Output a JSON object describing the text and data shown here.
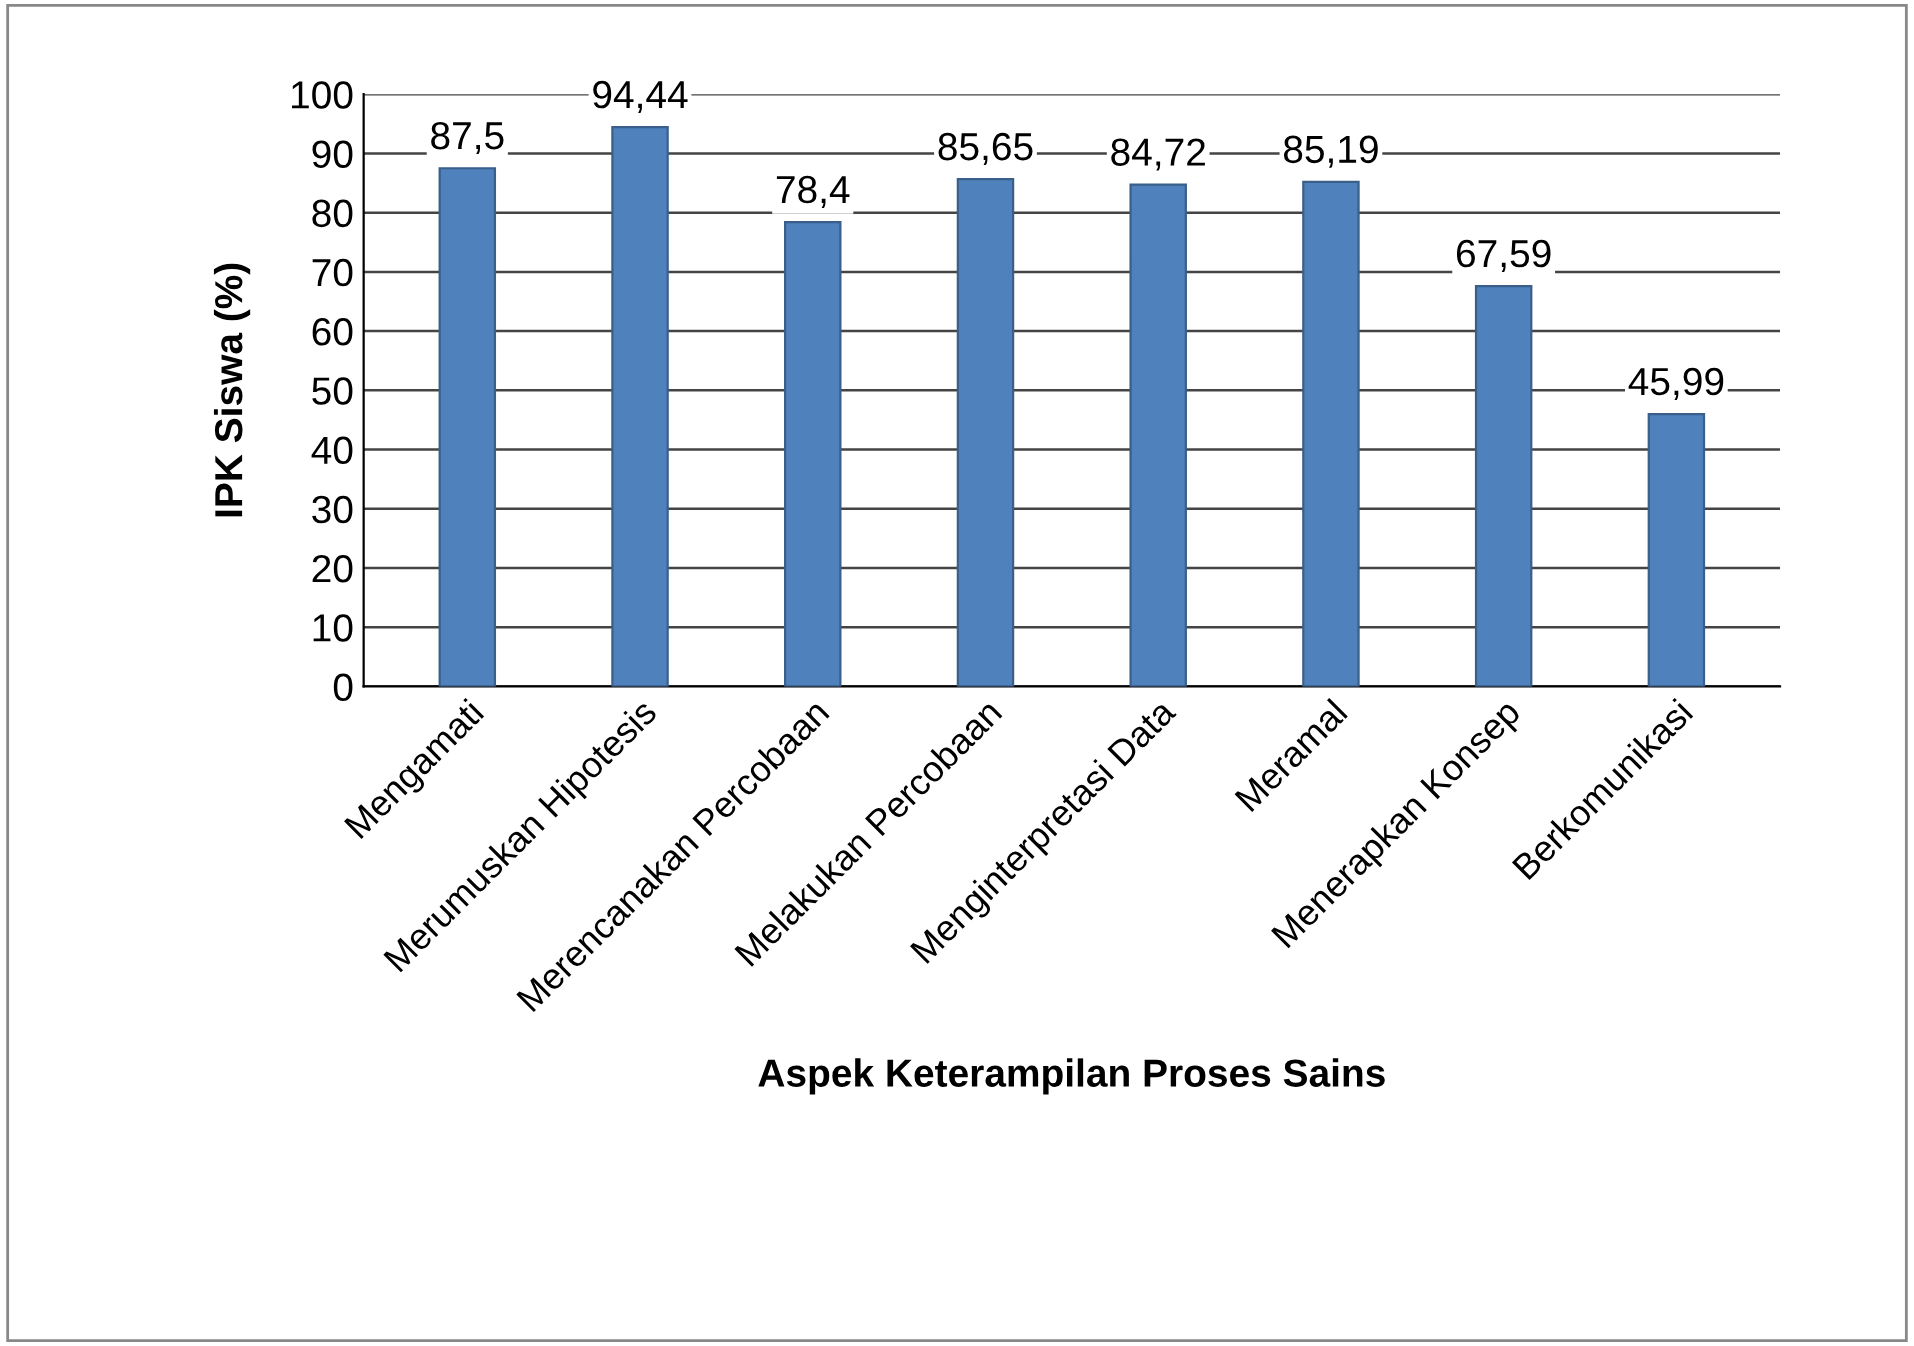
{
  "chart_data": {
    "type": "bar",
    "xlabel": "Aspek Keterampilan Proses Sains",
    "ylabel": "IPK Siswa (%)",
    "categories": [
      "Mengamati",
      "Merumuskan Hipotesis",
      "Merencanakan Percobaan",
      "Melakukan Percobaan",
      "Menginterpretasi Data",
      "Meramal",
      "Menerapkan Konsep",
      "Berkomunikasi"
    ],
    "values": [
      87.5,
      94.44,
      78.4,
      85.65,
      84.72,
      85.19,
      67.59,
      45.99
    ],
    "value_labels": [
      "87,5",
      "94,44",
      "78,4",
      "85,65",
      "84,72",
      "85,19",
      "67,59",
      "45,99"
    ],
    "color": "#4f81bd",
    "ylim": [
      0,
      100
    ],
    "yticks": [
      0,
      10,
      20,
      30,
      40,
      50,
      60,
      70,
      80,
      90,
      100
    ],
    "grid": "y"
  }
}
